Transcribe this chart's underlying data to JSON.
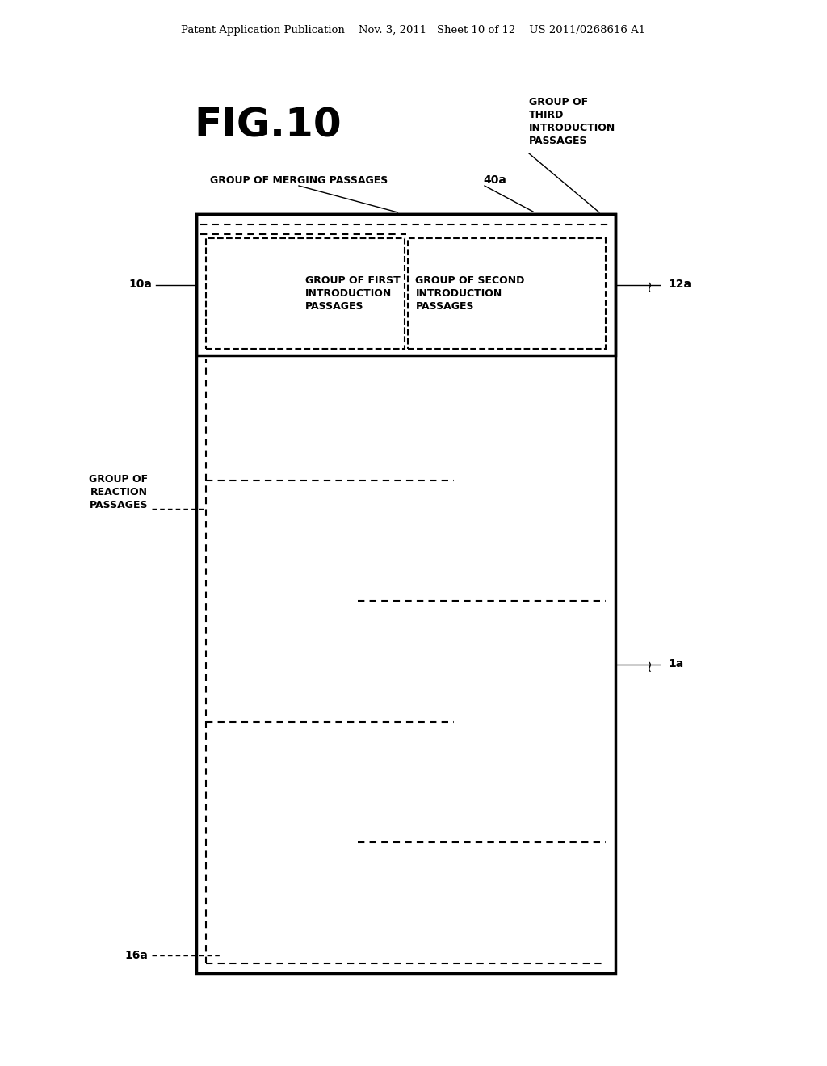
{
  "header_text": "Patent Application Publication    Nov. 3, 2011   Sheet 10 of 12    US 2011/0268616 A1",
  "title": "FIG.10",
  "bg_color": "#ffffff",
  "text_color": "#000000",
  "label_10a": "10a",
  "label_12a": "12a",
  "label_1a": "1a",
  "label_16a": "16a",
  "label_40a": "40a",
  "label_group_merging": "GROUP OF MERGING PASSAGES",
  "label_group_third": "GROUP OF\nTHIRD\nINTRODUCTION\nPASSAGES",
  "label_group_first": "GROUP OF FIRST\nINTRODUCTION\nPASSAGES",
  "label_group_second": "GROUP OF SECOND\nINTRODUCTION\nPASSAGES",
  "label_group_reaction": "GROUP OF\nREACTION\nPASSAGES"
}
